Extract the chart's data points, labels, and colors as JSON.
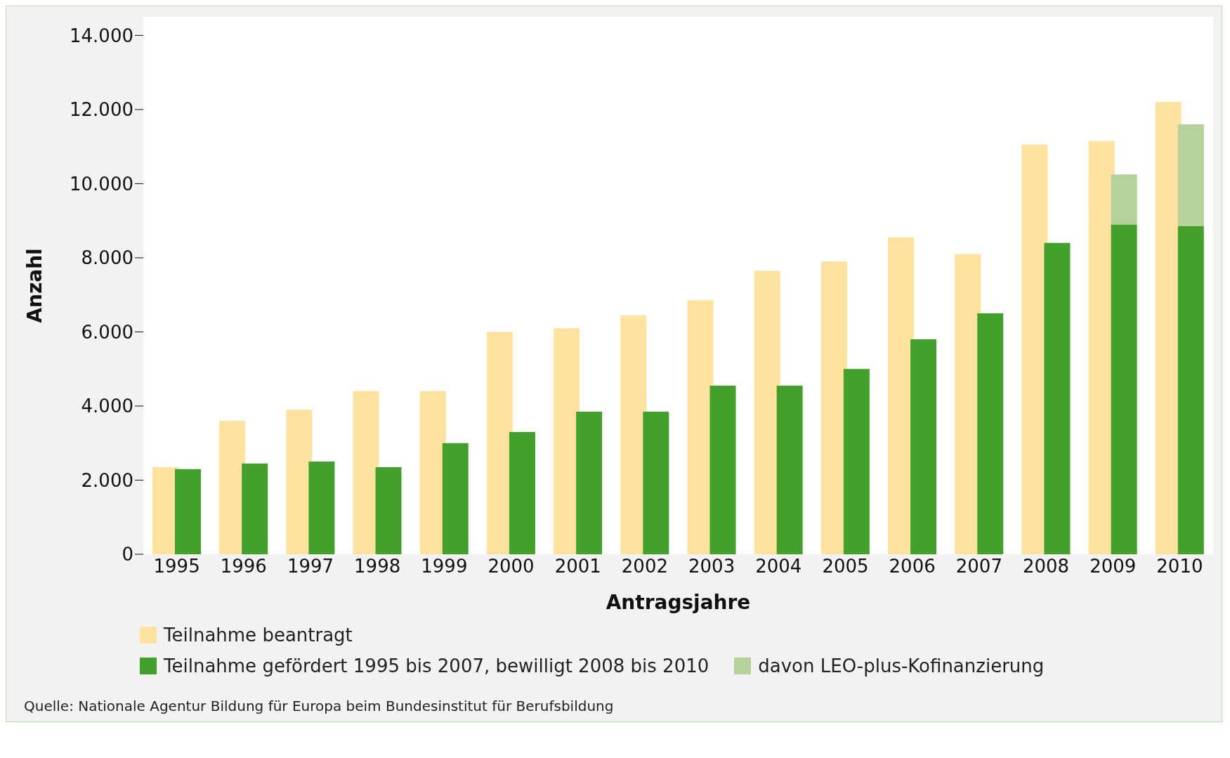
{
  "chart_data": {
    "type": "bar",
    "xlabel": "Antragsjahre",
    "ylabel": "Anzahl",
    "categories": [
      "1995",
      "1996",
      "1997",
      "1998",
      "1999",
      "2000",
      "2001",
      "2002",
      "2003",
      "2004",
      "2005",
      "2006",
      "2007",
      "2008",
      "2009",
      "2010"
    ],
    "series": [
      {
        "name": "Teilnahme beantragt",
        "color": "#fee29e",
        "values": [
          2350,
          3600,
          3900,
          4400,
          4400,
          6000,
          6100,
          6450,
          6850,
          7650,
          7900,
          8550,
          8100,
          11050,
          11150,
          12200
        ]
      },
      {
        "name": "Teilnahme gefördert 1995 bis 2007, bewilligt 2008 bis 2010",
        "color": "#44a02c",
        "values": [
          2300,
          2450,
          2500,
          2350,
          3000,
          3300,
          3850,
          3850,
          4550,
          4550,
          5000,
          5800,
          6500,
          8400,
          8900,
          8850
        ]
      },
      {
        "name": "davon LEO-plus-Kofinanzierung",
        "color": "#b5d09a",
        "values": [
          null,
          null,
          null,
          null,
          null,
          null,
          null,
          null,
          null,
          null,
          null,
          null,
          null,
          null,
          1350,
          2750
        ],
        "base": [
          null,
          null,
          null,
          null,
          null,
          null,
          null,
          null,
          null,
          null,
          null,
          null,
          null,
          null,
          8900,
          8850
        ]
      }
    ],
    "ylim": [
      0,
      14500
    ],
    "yticks": [
      {
        "value": 0,
        "label": "0"
      },
      {
        "value": 2000,
        "label": "2.000"
      },
      {
        "value": 4000,
        "label": "4.000"
      },
      {
        "value": 6000,
        "label": "6.000"
      },
      {
        "value": 8000,
        "label": "8.000"
      },
      {
        "value": 10000,
        "label": "10.000"
      },
      {
        "value": 12000,
        "label": "12.000"
      },
      {
        "value": 14000,
        "label": "14.000"
      }
    ],
    "grid": false,
    "legend": "bottom",
    "annotations": [
      "Quelle: Nationale Agentur Bildung für Europa beim Bundesinstitut für Berufsbildung"
    ]
  }
}
